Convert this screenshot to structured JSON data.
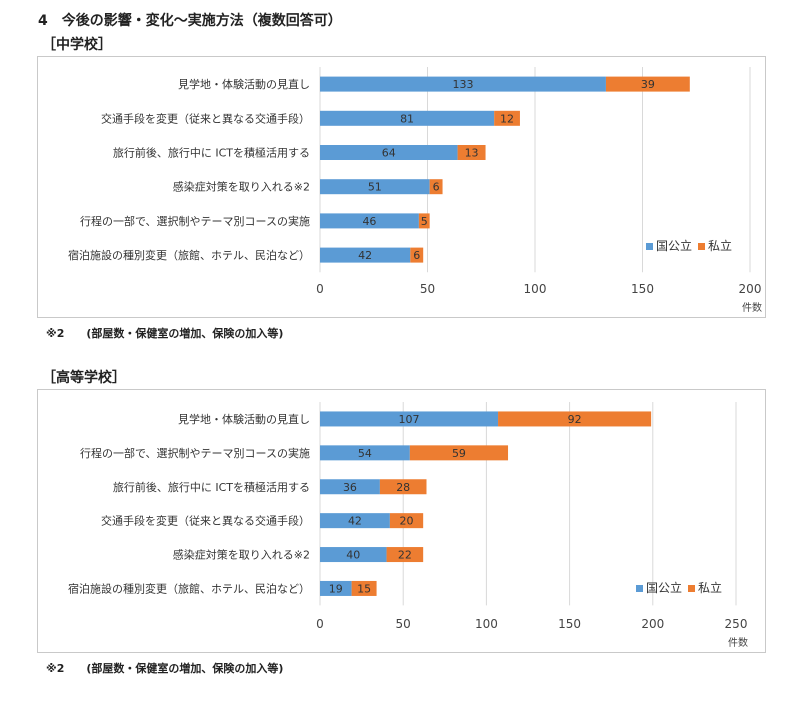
{
  "page": {
    "title": "4　今後の影響・変化～実施方法（複数回答可）"
  },
  "colors": {
    "public": "#5b9bd5",
    "private": "#ed7d31",
    "grid": "#d9d9d9"
  },
  "sections": [
    {
      "heading": "［中学校］",
      "note": "※2　　(部屋数・保健室の増加、保険の加入等)",
      "legend": [
        "国公立",
        "私立"
      ],
      "chart_data": {
        "type": "bar",
        "orientation": "horizontal",
        "stacked": true,
        "categories": [
          "見学地・体験活動の見直し",
          "交通手段を変更（従来と異なる交通手段）",
          "旅行前後、旅行中に ICTを積極活用する",
          "感染症対策を取り入れる※2",
          "行程の一部で、選択制やテーマ別コースの実施",
          "宿泊施設の種別変更（旅館、ホテル、民泊など）"
        ],
        "series": [
          {
            "name": "国公立",
            "values": [
              133,
              81,
              64,
              51,
              46,
              42
            ]
          },
          {
            "name": "私立",
            "values": [
              39,
              12,
              13,
              6,
              5,
              6
            ]
          }
        ],
        "xlim": [
          0,
          200
        ],
        "xticks": [
          0,
          50,
          100,
          150,
          200
        ],
        "xlabel": "件数",
        "grid": true,
        "legend_position": "bottom-right"
      }
    },
    {
      "heading": "［高等学校］",
      "note": "※2　　(部屋数・保健室の増加、保険の加入等)",
      "legend": [
        "国公立",
        "私立"
      ],
      "chart_data": {
        "type": "bar",
        "orientation": "horizontal",
        "stacked": true,
        "categories": [
          "見学地・体験活動の見直し",
          "行程の一部で、選択制やテーマ別コースの実施",
          "旅行前後、旅行中に ICTを積極活用する",
          "交通手段を変更（従来と異なる交通手段）",
          "感染症対策を取り入れる※2",
          "宿泊施設の種別変更（旅館、ホテル、民泊など）"
        ],
        "series": [
          {
            "name": "国公立",
            "values": [
              107,
              54,
              36,
              42,
              40,
              19
            ]
          },
          {
            "name": "私立",
            "values": [
              92,
              59,
              28,
              20,
              22,
              15
            ]
          }
        ],
        "xlim": [
          0,
          250
        ],
        "xticks": [
          0,
          50,
          100,
          150,
          200,
          250
        ],
        "xlabel": "件数",
        "grid": true,
        "legend_position": "bottom-right"
      }
    }
  ]
}
